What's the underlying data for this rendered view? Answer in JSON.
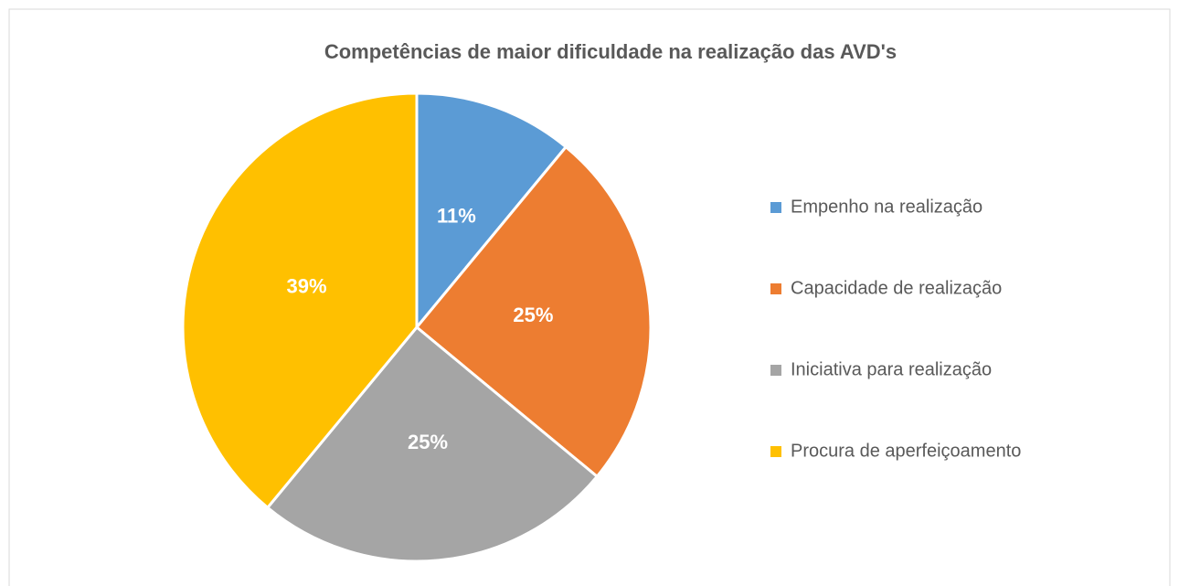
{
  "chart_data": {
    "type": "pie",
    "title": "Competências de maior dificuldade na realização das AVD's",
    "categories": [
      "Empenho na realização",
      "Capacidade de realização",
      "Iniciativa para realização",
      "Procura de aperfeiçoamento"
    ],
    "values": [
      11,
      25,
      25,
      39
    ],
    "value_labels": [
      "11%",
      "25%",
      "25%",
      "39%"
    ],
    "colors": [
      "#5b9bd5",
      "#ed7d31",
      "#a5a5a5",
      "#ffc000"
    ],
    "legend": "right"
  }
}
